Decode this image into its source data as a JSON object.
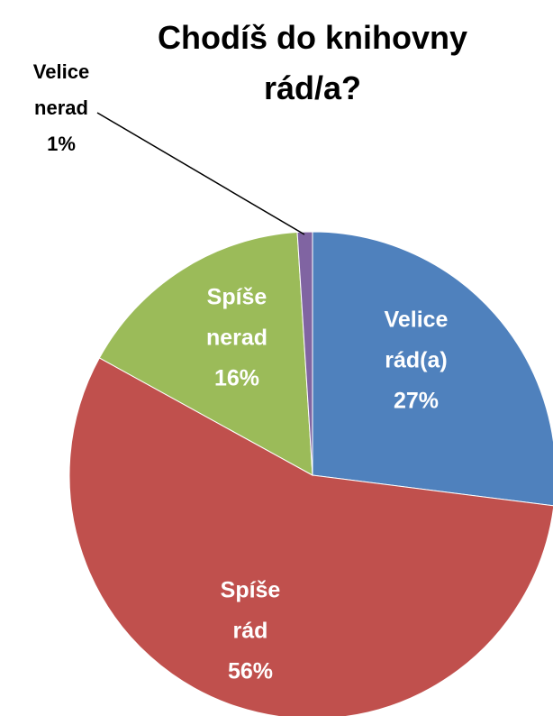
{
  "chart_data": {
    "type": "pie",
    "title": "Chodíš do knihovny rád/a?",
    "categories": [
      "Velice rád(a)",
      "Spíše rád",
      "Spíše nerad",
      "Velice nerad"
    ],
    "values": [
      27,
      56,
      16,
      1
    ],
    "value_labels": [
      "27%",
      "56%",
      "16%",
      "1%"
    ],
    "colors": [
      "#4f81bd",
      "#c0504d",
      "#9bbb59",
      "#8064a2"
    ]
  }
}
